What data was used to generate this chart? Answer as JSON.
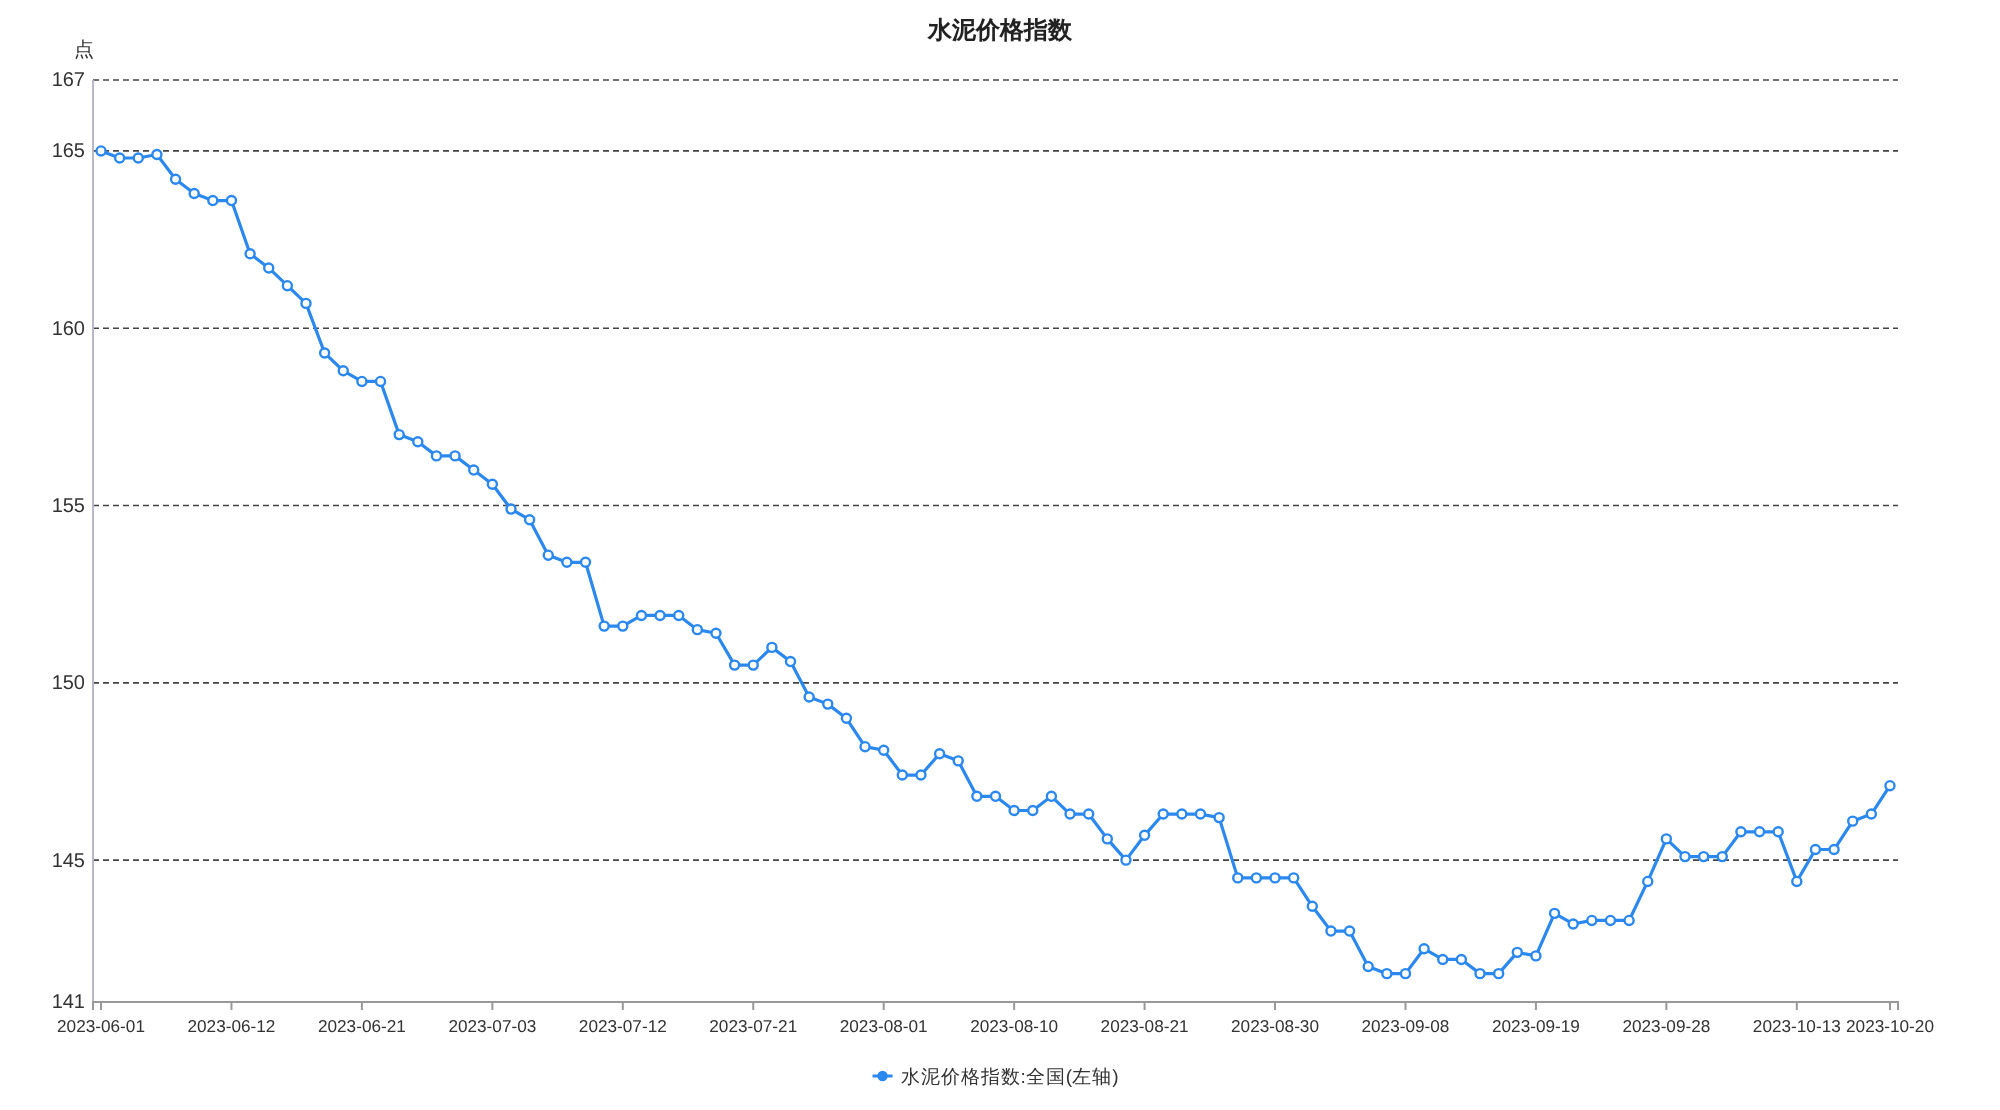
{
  "chart_data": {
    "type": "line",
    "title": "水泥价格指数",
    "ylabel": "点",
    "categories": [
      "2023-06-01",
      null,
      null,
      null,
      null,
      null,
      null,
      "2023-06-12",
      null,
      null,
      null,
      null,
      null,
      null,
      "2023-06-21",
      null,
      null,
      null,
      null,
      null,
      null,
      "2023-07-03",
      null,
      null,
      null,
      null,
      null,
      null,
      "2023-07-12",
      null,
      null,
      null,
      null,
      null,
      null,
      "2023-07-21",
      null,
      null,
      null,
      null,
      null,
      null,
      "2023-08-01",
      null,
      null,
      null,
      null,
      null,
      null,
      "2023-08-10",
      null,
      null,
      null,
      null,
      null,
      null,
      "2023-08-21",
      null,
      null,
      null,
      null,
      null,
      null,
      "2023-08-30",
      null,
      null,
      null,
      null,
      null,
      null,
      "2023-09-08",
      null,
      null,
      null,
      null,
      null,
      null,
      "2023-09-19",
      null,
      null,
      null,
      null,
      null,
      null,
      "2023-09-28",
      null,
      null,
      null,
      null,
      null,
      null,
      "2023-10-13",
      null,
      null,
      null,
      null,
      "2023-10-20"
    ],
    "series": [
      {
        "name": "水泥价格指数:全国(左轴)",
        "color": "#2b88ee",
        "values": [
          165.0,
          164.8,
          164.8,
          164.9,
          164.2,
          163.8,
          163.6,
          163.6,
          162.1,
          161.7,
          161.2,
          160.7,
          159.3,
          158.8,
          158.5,
          158.5,
          157.0,
          156.8,
          156.4,
          156.4,
          156.0,
          155.6,
          154.9,
          154.6,
          153.6,
          153.4,
          153.4,
          151.6,
          151.6,
          151.9,
          151.9,
          151.9,
          151.5,
          151.4,
          150.5,
          150.5,
          151.0,
          150.6,
          149.6,
          149.4,
          149.0,
          148.2,
          148.1,
          147.4,
          147.4,
          148.0,
          147.8,
          146.8,
          146.8,
          146.4,
          146.4,
          146.8,
          146.3,
          146.3,
          145.6,
          145.0,
          145.7,
          146.3,
          146.3,
          146.3,
          146.2,
          144.5,
          144.5,
          144.5,
          144.5,
          143.7,
          143.0,
          143.0,
          142.0,
          141.8,
          141.8,
          142.5,
          142.2,
          142.2,
          141.8,
          141.8,
          142.4,
          142.3,
          143.5,
          143.2,
          143.3,
          143.3,
          143.3,
          144.4,
          145.6,
          145.1,
          145.1,
          145.1,
          145.8,
          145.8,
          145.8,
          144.4,
          145.3,
          145.3,
          146.1,
          146.3,
          147.1
        ]
      }
    ],
    "ylim": [
      141,
      167
    ],
    "yticks": [
      141,
      145,
      150,
      155,
      160,
      165,
      167
    ],
    "grid": "y",
    "legend": "bottom",
    "marker": "circle",
    "line_style": "solid"
  }
}
